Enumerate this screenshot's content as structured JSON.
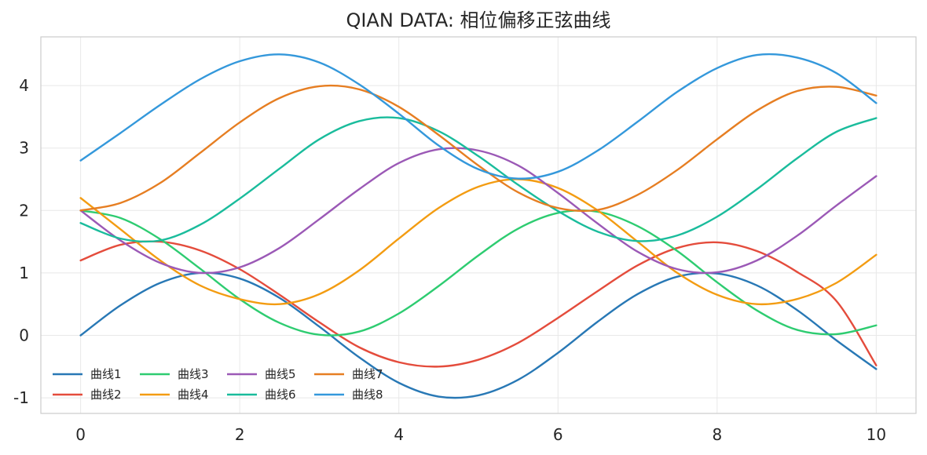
{
  "chart_data": {
    "type": "line",
    "title": "QIAN DATA: 相位偏移正弦曲线",
    "xlabel": "",
    "ylabel": "",
    "xlim": [
      -0.5,
      10.5
    ],
    "ylim": [
      -1.25,
      4.78
    ],
    "xticks": [
      0,
      2,
      4,
      6,
      8,
      10
    ],
    "yticks": [
      -1,
      0,
      1,
      2,
      3,
      4
    ],
    "grid": true,
    "legend_position": "bottom-left",
    "legend_columns": 4,
    "x": [
      0,
      0.5,
      1,
      1.5,
      2,
      2.5,
      3,
      3.5,
      4,
      4.5,
      5,
      5.5,
      6,
      6.5,
      7,
      7.5,
      8,
      8.5,
      9,
      9.5,
      10
    ],
    "series": [
      {
        "name": "曲线1",
        "color": "#2878b5",
        "values": [
          0.0,
          0.48,
          0.84,
          1.0,
          0.91,
          0.6,
          0.14,
          -0.35,
          -0.76,
          -0.98,
          -0.96,
          -0.71,
          -0.28,
          0.22,
          0.66,
          0.94,
          0.99,
          0.8,
          0.41,
          -0.08,
          -0.54
        ]
      },
      {
        "name": "曲线2",
        "color": "#e44c3c",
        "values": [
          1.2,
          1.45,
          1.5,
          1.36,
          1.06,
          0.65,
          0.21,
          -0.19,
          -0.43,
          -0.5,
          -0.39,
          -0.12,
          0.28,
          0.71,
          1.12,
          1.4,
          1.49,
          1.35,
          1.02,
          0.55,
          -0.48
        ]
      },
      {
        "name": "曲线3",
        "color": "#2ecc71",
        "values": [
          2.0,
          1.88,
          1.54,
          1.07,
          0.58,
          0.2,
          0.01,
          0.06,
          0.35,
          0.79,
          1.28,
          1.71,
          1.96,
          1.98,
          1.75,
          1.35,
          0.85,
          0.4,
          0.09,
          0.02,
          0.16
        ]
      },
      {
        "name": "曲线4",
        "color": "#f39c12",
        "values": [
          2.2,
          1.7,
          1.2,
          0.8,
          0.58,
          0.5,
          0.66,
          1.04,
          1.55,
          2.04,
          2.38,
          2.5,
          2.36,
          2.0,
          1.5,
          1.0,
          0.65,
          0.5,
          0.58,
          0.84,
          1.29
        ]
      },
      {
        "name": "曲线5",
        "color": "#9b59b6",
        "values": [
          2.0,
          1.52,
          1.16,
          1.0,
          1.09,
          1.4,
          1.86,
          2.34,
          2.76,
          2.98,
          2.96,
          2.72,
          2.28,
          1.79,
          1.34,
          1.06,
          1.01,
          1.2,
          1.59,
          2.08,
          2.55
        ]
      },
      {
        "name": "曲线6",
        "color": "#1abc9c",
        "values": [
          1.8,
          1.55,
          1.52,
          1.77,
          2.19,
          2.67,
          3.14,
          3.43,
          3.48,
          3.27,
          2.87,
          2.41,
          1.99,
          1.66,
          1.51,
          1.6,
          1.9,
          2.34,
          2.83,
          3.26,
          3.48
        ]
      },
      {
        "name": "曲线7",
        "color": "#e67e22",
        "values": [
          2.0,
          2.12,
          2.44,
          2.92,
          3.41,
          3.8,
          3.99,
          3.94,
          3.66,
          3.21,
          2.72,
          2.29,
          2.04,
          2.01,
          2.25,
          2.65,
          3.14,
          3.6,
          3.91,
          3.98,
          3.84
        ]
      },
      {
        "name": "曲线8",
        "color": "#3498db",
        "values": [
          2.8,
          3.24,
          3.69,
          4.1,
          4.39,
          4.5,
          4.37,
          4.02,
          3.55,
          3.04,
          2.66,
          2.51,
          2.62,
          2.96,
          3.42,
          3.9,
          4.28,
          4.49,
          4.45,
          4.2,
          3.72
        ]
      }
    ]
  }
}
